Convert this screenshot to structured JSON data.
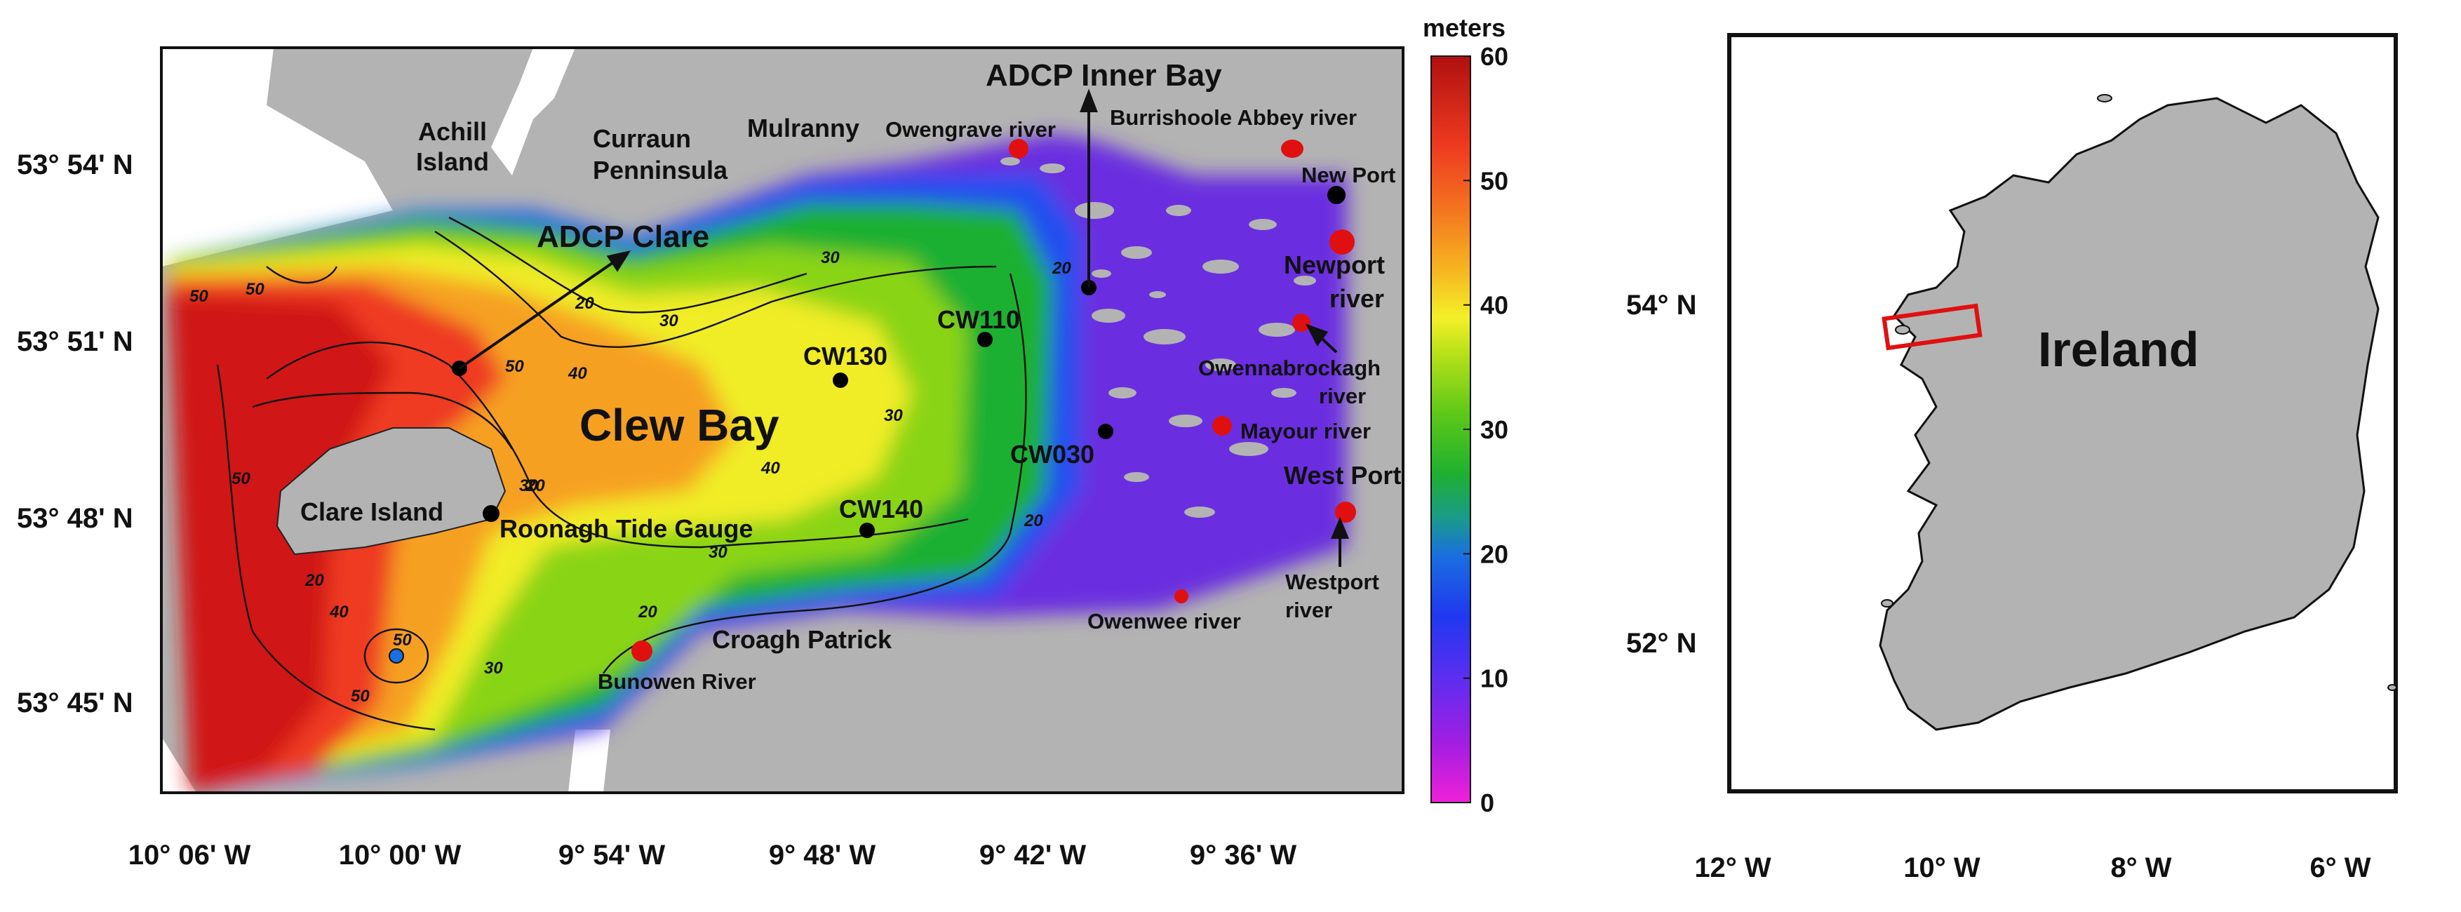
{
  "bay_map": {
    "title_water": "Clew Bay",
    "y_ticks": [
      "53° 54' N",
      "53° 51' N",
      "53° 48' N",
      "53° 45' N"
    ],
    "x_ticks": [
      "10° 06' W",
      "10° 00' W",
      "9° 54' W",
      "9° 48' W",
      "9° 42' W",
      "9° 36' W"
    ],
    "land_labels": {
      "achill_1": "Achill",
      "achill_2": "Island",
      "curraun_1": "Curraun",
      "curraun_2": "Penninsula",
      "mulranny": "Mulranny",
      "clare_island": "Clare Island",
      "croagh": "Croagh  Patrick"
    },
    "stations": {
      "adcp_clare": "ADCP Clare",
      "adcp_inner": "ADCP Inner Bay",
      "cw130": "CW130",
      "cw110": "CW110",
      "cw140": "CW140",
      "cw030": "CW030",
      "roonagh": "Roonagh Tide Gauge",
      "new_port": "New Port",
      "west_port": "West Port"
    },
    "rivers": {
      "owengrave": "Owengrave river",
      "burrishoole": "Burrishoole Abbey river",
      "newport_1": "Newport",
      "newport_2": "river",
      "owennabrockagh_1": "Owennabrockagh",
      "owennabrockagh_2": "river",
      "mayour": "Mayour river",
      "westport_r1": "Westport",
      "westport_r2": "river",
      "owenwee": "Owenwee river",
      "bunowen": "Bunowen River"
    },
    "contour_labels": [
      "50",
      "50",
      "50",
      "50",
      "50",
      "50",
      "40",
      "40",
      "40",
      "30",
      "30",
      "30",
      "30",
      "30",
      "30",
      "20",
      "20",
      "20",
      "20",
      "20",
      "20"
    ]
  },
  "colorbar": {
    "unit": "meters",
    "min": 0,
    "max": 60,
    "ticks": [
      "60",
      "50",
      "40",
      "30",
      "20",
      "10",
      "0"
    ],
    "colors": [
      "#f020d8",
      "#8a1ee0",
      "#5a2ef0",
      "#2038f0",
      "#1a6ee0",
      "#1a9a8c",
      "#1fb030",
      "#5cc818",
      "#b6e018",
      "#f4f028",
      "#f6c020",
      "#f6a020",
      "#f47020",
      "#ee3a20",
      "#d81818",
      "#b01010"
    ]
  },
  "ireland_map": {
    "title": "Ireland",
    "y_ticks": [
      "54° N",
      "52° N"
    ],
    "x_ticks": [
      "12° W",
      "10° W",
      "8° W",
      "6° W"
    ],
    "land_color": "#b3b3b3",
    "highlight_color": "#e01010"
  }
}
